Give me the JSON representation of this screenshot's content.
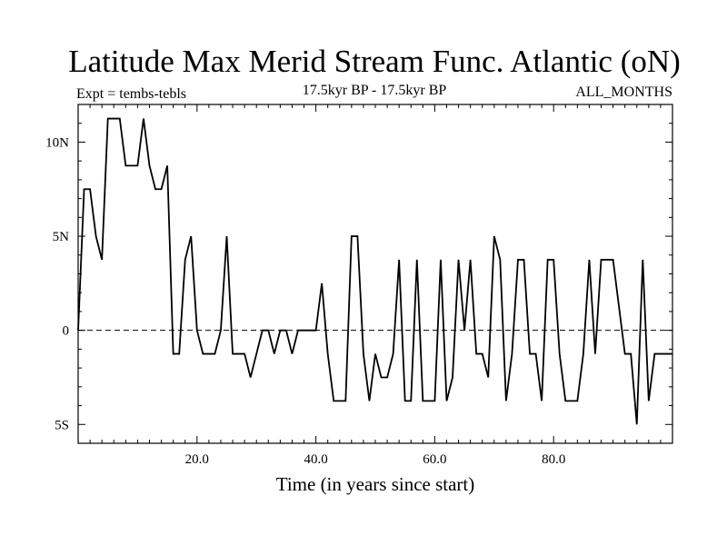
{
  "chart_data": {
    "type": "line",
    "title": "Latitude Max Merid Stream Func. Atlantic (oN)",
    "subtitle_left": "Expt = tembs-tebls",
    "subtitle_center": "17.5kyr BP - 17.5kyr BP",
    "subtitle_right": "ALL_MONTHS",
    "xlabel": "Time (in years since start)",
    "ylabel": "",
    "xlim": [
      0,
      100
    ],
    "ylim": [
      -6,
      12
    ],
    "x_ticks": [
      20,
      40,
      60,
      80
    ],
    "x_tick_labels": [
      "20.0",
      "40.0",
      "60.0",
      "80.0"
    ],
    "y_ticks": [
      -5,
      0,
      5,
      10
    ],
    "y_tick_labels": [
      "5S",
      "0",
      "5N",
      "10N"
    ],
    "zero_line": "dashed",
    "x": [
      0,
      1,
      2,
      3,
      4,
      5,
      6,
      7,
      8,
      9,
      10,
      11,
      12,
      13,
      14,
      15,
      16,
      17,
      18,
      19,
      20,
      21,
      22,
      23,
      24,
      25,
      26,
      27,
      28,
      29,
      30,
      31,
      32,
      33,
      34,
      35,
      36,
      37,
      38,
      39,
      40,
      41,
      42,
      43,
      44,
      45,
      46,
      47,
      48,
      49,
      50,
      51,
      52,
      53,
      54,
      55,
      56,
      57,
      58,
      59,
      60,
      61,
      62,
      63,
      64,
      65,
      66,
      67,
      68,
      69,
      70,
      71,
      72,
      73,
      74,
      75,
      76,
      77,
      78,
      79,
      80,
      81,
      82,
      83,
      84,
      85,
      86,
      87,
      88,
      89,
      90,
      91,
      92,
      93,
      94,
      95,
      96,
      97,
      98,
      99,
      100
    ],
    "values": [
      0,
      7.5,
      7.5,
      5,
      3.75,
      11.25,
      11.25,
      11.25,
      8.75,
      8.75,
      8.75,
      11.25,
      8.75,
      7.5,
      7.5,
      8.75,
      -1.25,
      -1.25,
      3.75,
      5,
      0,
      -1.25,
      -1.25,
      -1.25,
      0,
      5,
      -1.25,
      -1.25,
      -1.25,
      -2.5,
      -1.25,
      0,
      0,
      -1.25,
      0,
      0,
      -1.25,
      0,
      0,
      0,
      0,
      2.5,
      -1.25,
      -3.75,
      -3.75,
      -3.75,
      5,
      5,
      -1.25,
      -3.75,
      -1.25,
      -2.5,
      -2.5,
      -1.25,
      3.75,
      -3.75,
      -3.75,
      3.75,
      -3.75,
      -3.75,
      -3.75,
      3.75,
      -3.75,
      -2.5,
      3.75,
      0,
      3.75,
      -1.25,
      -1.25,
      -2.5,
      5,
      3.75,
      -3.75,
      -1.25,
      3.75,
      3.75,
      -1.25,
      -1.25,
      -3.75,
      3.75,
      3.75,
      -1.25,
      -3.75,
      -3.75,
      -3.75,
      -1.25,
      3.75,
      -1.25,
      3.75,
      3.75,
      3.75,
      1.25,
      -1.25,
      -1.25,
      -5,
      3.75,
      -3.75,
      -1.25,
      -1.25,
      -1.25,
      -1.25
    ]
  }
}
